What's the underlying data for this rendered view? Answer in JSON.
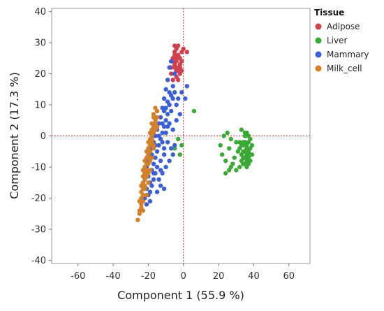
{
  "chart_data": {
    "type": "scatter",
    "xlabel": "Component 1  (55.9 %)",
    "ylabel": "Component 2  (17.3 %)",
    "xlim": [
      -75,
      72
    ],
    "ylim": [
      -41,
      41
    ],
    "xticks": [
      -60,
      -40,
      -20,
      0,
      20,
      40,
      60
    ],
    "yticks": [
      -40,
      -30,
      -20,
      -10,
      0,
      10,
      20,
      30,
      40
    ],
    "reference_lines": {
      "x": 0,
      "y": 0,
      "style": "dotted",
      "color": "#d62728"
    },
    "legend": {
      "title": "Tissue",
      "position": "right"
    },
    "series": [
      {
        "name": "Adipose",
        "color": "#d0414f",
        "points": [
          [
            -4,
            28
          ],
          [
            -5,
            27
          ],
          [
            -3,
            26
          ],
          [
            -6,
            25
          ],
          [
            -4,
            24
          ],
          [
            -2,
            23
          ],
          [
            -5,
            22
          ],
          [
            -3,
            21
          ],
          [
            -7,
            20
          ],
          [
            -4,
            19
          ],
          [
            -6,
            18
          ],
          [
            -2,
            25
          ],
          [
            -1,
            27
          ],
          [
            -3,
            29
          ],
          [
            -5,
            29
          ],
          [
            -4,
            22
          ],
          [
            -2,
            20
          ],
          [
            -6,
            24
          ],
          [
            -3,
            26
          ],
          [
            -1,
            24
          ],
          [
            0,
            28
          ],
          [
            2,
            27
          ],
          [
            -5,
            23
          ],
          [
            -4,
            21
          ],
          [
            -7,
            22
          ],
          [
            -2,
            22
          ],
          [
            -3,
            18
          ],
          [
            -1,
            21
          ],
          [
            -5,
            26
          ],
          [
            -4,
            25
          ]
        ]
      },
      {
        "name": "Liver",
        "color": "#3aa935",
        "points": [
          [
            33,
            2
          ],
          [
            35,
            1
          ],
          [
            37,
            0
          ],
          [
            34,
            -2
          ],
          [
            36,
            -3
          ],
          [
            38,
            -4
          ],
          [
            35,
            -5
          ],
          [
            33,
            -6
          ],
          [
            37,
            -7
          ],
          [
            36,
            -8
          ],
          [
            34,
            -9
          ],
          [
            38,
            -1
          ],
          [
            32,
            -4
          ],
          [
            36,
            -6
          ],
          [
            35,
            -2
          ],
          [
            37,
            -5
          ],
          [
            33,
            -8
          ],
          [
            34,
            -3
          ],
          [
            36,
            1
          ],
          [
            35,
            -7
          ],
          [
            38,
            -6
          ],
          [
            32,
            -2
          ],
          [
            37,
            -9
          ],
          [
            34,
            -5
          ],
          [
            36,
            -4
          ],
          [
            35,
            0
          ],
          [
            33,
            -3
          ],
          [
            37,
            -2
          ],
          [
            36,
            -10
          ],
          [
            34,
            -7
          ],
          [
            31,
            -5
          ],
          [
            30,
            -2
          ],
          [
            29,
            -7
          ],
          [
            28,
            -9
          ],
          [
            27,
            -10
          ],
          [
            26,
            -11
          ],
          [
            24,
            -12
          ],
          [
            22,
            -6
          ],
          [
            21,
            -3
          ],
          [
            23,
            0
          ],
          [
            25,
            1
          ],
          [
            27,
            -1
          ],
          [
            26,
            -4
          ],
          [
            24,
            -8
          ],
          [
            30,
            -11
          ],
          [
            32,
            -10
          ],
          [
            35,
            -9
          ],
          [
            38,
            -8
          ],
          [
            39,
            -3
          ],
          [
            39,
            -6
          ],
          [
            6,
            8
          ],
          [
            -3,
            -1
          ],
          [
            -1,
            -3
          ],
          [
            -5,
            -4
          ],
          [
            -2,
            -6
          ]
        ]
      },
      {
        "name": "Mammary",
        "color": "#3b5fd6",
        "points": [
          [
            -7,
            24
          ],
          [
            -8,
            22
          ],
          [
            -5,
            20
          ],
          [
            -9,
            18
          ],
          [
            -6,
            16
          ],
          [
            -10,
            15
          ],
          [
            -7,
            13
          ],
          [
            -11,
            12
          ],
          [
            -8,
            10
          ],
          [
            -12,
            9
          ],
          [
            -9,
            7
          ],
          [
            -13,
            6
          ],
          [
            -10,
            5
          ],
          [
            -14,
            4
          ],
          [
            -11,
            3
          ],
          [
            -15,
            2
          ],
          [
            -12,
            1
          ],
          [
            -16,
            0
          ],
          [
            -13,
            -1
          ],
          [
            -17,
            -2
          ],
          [
            -14,
            -3
          ],
          [
            -18,
            -4
          ],
          [
            -15,
            -5
          ],
          [
            -19,
            -6
          ],
          [
            -16,
            -7
          ],
          [
            -20,
            -8
          ],
          [
            -17,
            -9
          ],
          [
            -21,
            -10
          ],
          [
            -18,
            -11
          ],
          [
            -20,
            -13
          ],
          [
            -19,
            -15
          ],
          [
            -21,
            -17
          ],
          [
            -20,
            -19
          ],
          [
            -22,
            -20
          ],
          [
            -19,
            -18
          ],
          [
            -18,
            -16
          ],
          [
            -17,
            -14
          ],
          [
            -16,
            -12
          ],
          [
            -13,
            -16
          ],
          [
            -15,
            -18
          ],
          [
            -11,
            -17
          ],
          [
            -14,
            -14
          ],
          [
            -12,
            -12
          ],
          [
            -10,
            -10
          ],
          [
            -8,
            -8
          ],
          [
            -6,
            -6
          ],
          [
            -5,
            -3
          ],
          [
            -4,
            10
          ],
          [
            -3,
            12
          ],
          [
            -5,
            14
          ],
          [
            -7,
            8
          ],
          [
            -9,
            3
          ],
          [
            -11,
            -4
          ],
          [
            -13,
            -8
          ],
          [
            -6,
            2
          ],
          [
            -4,
            5
          ],
          [
            -2,
            7
          ],
          [
            2,
            16
          ],
          [
            1,
            12
          ],
          [
            -1,
            14
          ],
          [
            -8,
            14
          ],
          [
            -9,
            11
          ],
          [
            -6,
            12
          ],
          [
            -11,
            8
          ],
          [
            -10,
            1
          ],
          [
            -12,
            -2
          ],
          [
            -15,
            -10
          ],
          [
            -17,
            -12
          ],
          [
            -18,
            -6
          ],
          [
            -16,
            -3
          ],
          [
            -14,
            0
          ],
          [
            -12,
            4
          ],
          [
            -10,
            9
          ],
          [
            -8,
            4
          ],
          [
            -9,
            -2
          ],
          [
            -7,
            -4
          ],
          [
            -11,
            -6
          ],
          [
            -13,
            -11
          ],
          [
            -19,
            -21
          ],
          [
            -21,
            -22
          ]
        ]
      },
      {
        "name": "Milk_cell",
        "color": "#d2802a",
        "points": [
          [
            -16,
            9
          ],
          [
            -17,
            7
          ],
          [
            -16,
            5
          ],
          [
            -18,
            4
          ],
          [
            -17,
            3
          ],
          [
            -18,
            2
          ],
          [
            -19,
            1
          ],
          [
            -18,
            0
          ],
          [
            -19,
            -1
          ],
          [
            -20,
            -2
          ],
          [
            -19,
            -3
          ],
          [
            -20,
            -4
          ],
          [
            -21,
            -5
          ],
          [
            -20,
            -6
          ],
          [
            -21,
            -7
          ],
          [
            -22,
            -8
          ],
          [
            -21,
            -9
          ],
          [
            -22,
            -10
          ],
          [
            -23,
            -11
          ],
          [
            -22,
            -12
          ],
          [
            -23,
            -13
          ],
          [
            -22,
            -14
          ],
          [
            -23,
            -15
          ],
          [
            -24,
            -16
          ],
          [
            -23,
            -17
          ],
          [
            -24,
            -18
          ],
          [
            -23,
            -19
          ],
          [
            -24,
            -20
          ],
          [
            -25,
            -21
          ],
          [
            -24,
            -22
          ],
          [
            -24,
            -23
          ],
          [
            -25,
            -24
          ],
          [
            -23,
            -24
          ],
          [
            -25,
            -25
          ],
          [
            -26,
            -27
          ],
          [
            -15,
            8
          ],
          [
            -17,
            6
          ],
          [
            -16,
            4
          ],
          [
            -15,
            3
          ],
          [
            -17,
            1
          ],
          [
            -18,
            -1
          ],
          [
            -17,
            -3
          ],
          [
            -19,
            -5
          ],
          [
            -18,
            -7
          ],
          [
            -20,
            -9
          ],
          [
            -19,
            -11
          ],
          [
            -21,
            -13
          ],
          [
            -20,
            -15
          ],
          [
            -22,
            -17
          ],
          [
            -21,
            -19
          ],
          [
            -16,
            2
          ],
          [
            -18,
            -2
          ],
          [
            -20,
            -7
          ],
          [
            -21,
            -11
          ],
          [
            -22,
            -16
          ],
          [
            -23,
            -21
          ],
          [
            -15,
            6
          ],
          [
            -17,
            -4
          ],
          [
            -19,
            -8
          ],
          [
            -20,
            -12
          ]
        ]
      }
    ]
  }
}
